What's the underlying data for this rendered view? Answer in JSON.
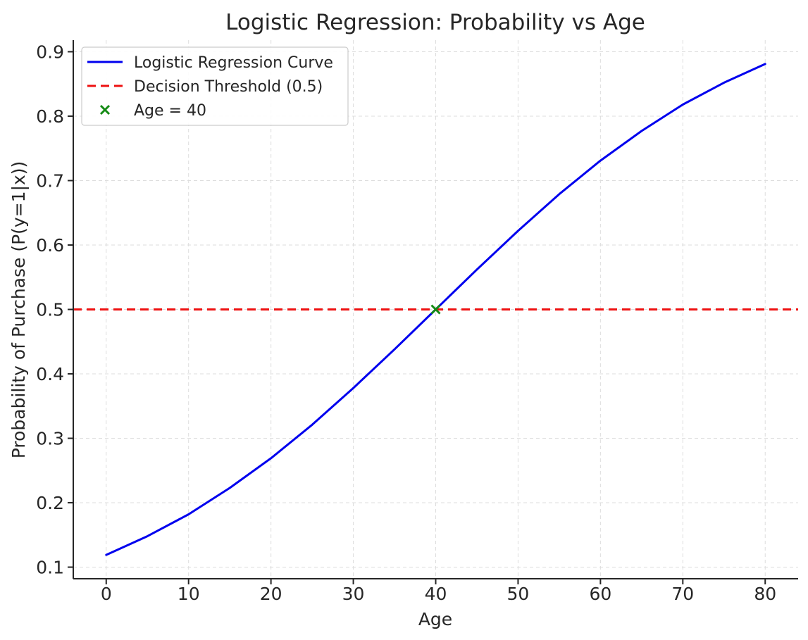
{
  "chart_data": {
    "type": "line",
    "title": "Logistic Regression: Probability vs Age",
    "xlabel": "Age",
    "ylabel": "Probability of Purchase (P(y=1|x))",
    "xlim": [
      -4,
      84
    ],
    "ylim": [
      0.082,
      0.918
    ],
    "x_ticks": [
      0,
      10,
      20,
      30,
      40,
      50,
      60,
      70,
      80
    ],
    "y_ticks": [
      0.1,
      0.2,
      0.3,
      0.4,
      0.5,
      0.6,
      0.7,
      0.8,
      0.9
    ],
    "grid": true,
    "legend_position": "top-left",
    "series": [
      {
        "name": "Logistic Regression Curve",
        "style": "solid",
        "color": "#0000ee",
        "x": [
          0,
          5,
          10,
          15,
          20,
          25,
          30,
          35,
          40,
          45,
          50,
          55,
          60,
          65,
          70,
          75,
          80
        ],
        "y": [
          0.119,
          0.148,
          0.182,
          0.223,
          0.269,
          0.321,
          0.378,
          0.438,
          0.5,
          0.562,
          0.622,
          0.679,
          0.731,
          0.777,
          0.818,
          0.852,
          0.881
        ]
      }
    ],
    "reference_lines": [
      {
        "name": "Decision Threshold (0.5)",
        "orientation": "horizontal",
        "y": 0.5,
        "style": "dashed",
        "color": "#ee1111"
      }
    ],
    "markers": [
      {
        "name": "Age = 40",
        "x": 40,
        "y": 0.5,
        "symbol": "x",
        "color": "#138a13"
      }
    ]
  }
}
